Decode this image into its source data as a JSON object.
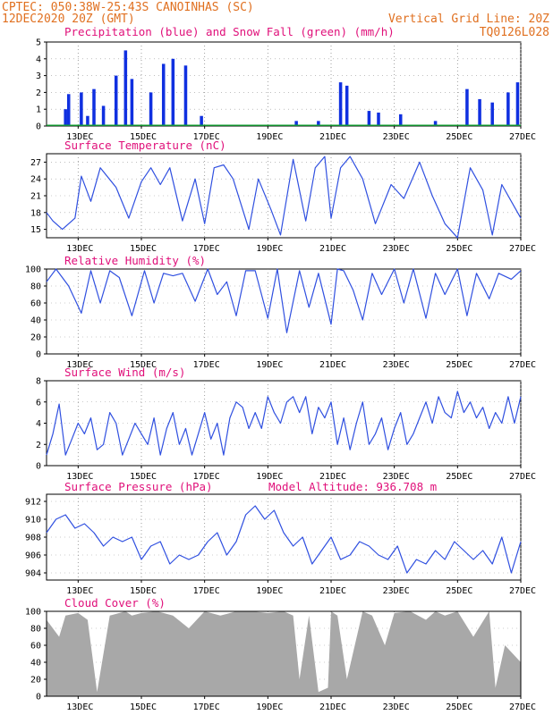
{
  "header": {
    "line1_left": "CPTEC:   050:38W-25:43S   CANOINHAS (SC)",
    "line2_left": "12DEC2020 20Z (GMT)",
    "line2_right": "Vertical Grid Line: 20Z",
    "line3_right": "TQ0126L028"
  },
  "x_tick_labels": [
    "13DEC",
    "15DEC",
    "17DEC",
    "19DEC",
    "21DEC",
    "23DEC",
    "25DEC",
    "27DEC"
  ],
  "colors": {
    "rain": "#1030e0",
    "snow": "#10a030",
    "line": "#3050e0",
    "cloud": "#a8a8a8",
    "title": "#e0107a",
    "header": "#e07020"
  },
  "chart_data": [
    {
      "type": "bar",
      "title": "Precipitation (blue) and Snow Fall (green) (mm/h)",
      "ylim": [
        0,
        5
      ],
      "yticks": [
        "0",
        "1",
        "2",
        "3",
        "4",
        "5"
      ],
      "series": [
        {
          "name": "Precipitation",
          "x": [
            12.6,
            12.7,
            13.1,
            13.3,
            13.5,
            13.8,
            14.2,
            14.5,
            14.7,
            15.3,
            15.7,
            16.0,
            16.4,
            16.9,
            19.9,
            20.6,
            21.3,
            21.5,
            22.2,
            22.5,
            23.2,
            24.3,
            25.3,
            25.7,
            26.1,
            26.6,
            26.9
          ],
          "values": [
            1.0,
            1.9,
            2.0,
            0.6,
            2.2,
            1.2,
            3.0,
            4.5,
            2.8,
            2.0,
            3.7,
            4.0,
            3.6,
            0.6,
            0.3,
            0.3,
            2.6,
            2.4,
            0.9,
            0.8,
            0.7,
            0.3,
            2.2,
            1.6,
            1.4,
            2.0,
            2.6
          ]
        },
        {
          "name": "Snow Fall",
          "values": [
            0
          ]
        }
      ]
    },
    {
      "type": "line",
      "title": "Surface Temperature (nC)",
      "ylim": [
        13.5,
        28.5
      ],
      "yticks": [
        "15",
        "18",
        "21",
        "24",
        "27"
      ],
      "x": [
        12.0,
        12.2,
        12.5,
        12.9,
        13.1,
        13.4,
        13.7,
        14.2,
        14.6,
        15.0,
        15.3,
        15.6,
        15.9,
        16.3,
        16.7,
        17.0,
        17.3,
        17.6,
        17.9,
        18.4,
        18.7,
        19.1,
        19.4,
        19.8,
        20.2,
        20.5,
        20.8,
        21.0,
        21.3,
        21.6,
        22.0,
        22.4,
        22.9,
        23.3,
        23.8,
        24.2,
        24.6,
        25.0,
        25.4,
        25.8,
        26.1,
        26.4,
        26.7,
        27.0
      ],
      "values": [
        18.0,
        16.5,
        15.0,
        17.0,
        24.5,
        20.0,
        26.0,
        22.5,
        17.0,
        23.5,
        26.0,
        23.0,
        26.0,
        16.5,
        24.0,
        16.0,
        26.0,
        26.5,
        24.0,
        15.0,
        24.0,
        18.5,
        14.0,
        27.5,
        16.5,
        26.0,
        28.0,
        17.0,
        26.0,
        28.0,
        24.0,
        16.0,
        23.0,
        20.5,
        27.0,
        21.0,
        16.0,
        13.5,
        26.0,
        22.0,
        14.0,
        23.0,
        20.0,
        17.0
      ]
    },
    {
      "type": "line",
      "title": "Relative Humidity (%)",
      "ylim": [
        0,
        100
      ],
      "yticks": [
        "0",
        "20",
        "40",
        "60",
        "80",
        "100"
      ],
      "x": [
        12.0,
        12.3,
        12.7,
        13.1,
        13.4,
        13.7,
        14.0,
        14.3,
        14.7,
        15.1,
        15.4,
        15.7,
        16.0,
        16.3,
        16.7,
        17.1,
        17.4,
        17.7,
        18.0,
        18.3,
        18.6,
        19.0,
        19.3,
        19.6,
        20.0,
        20.3,
        20.6,
        21.0,
        21.2,
        21.4,
        21.7,
        22.0,
        22.3,
        22.6,
        23.0,
        23.3,
        23.6,
        24.0,
        24.3,
        24.6,
        25.0,
        25.3,
        25.6,
        26.0,
        26.3,
        26.7,
        27.0
      ],
      "values": [
        85,
        100,
        80,
        48,
        98,
        60,
        98,
        90,
        45,
        98,
        60,
        95,
        92,
        95,
        62,
        100,
        70,
        85,
        45,
        98,
        98,
        42,
        100,
        25,
        98,
        55,
        95,
        35,
        100,
        98,
        75,
        40,
        95,
        70,
        100,
        60,
        100,
        42,
        95,
        70,
        100,
        45,
        95,
        65,
        95,
        88,
        98
      ]
    },
    {
      "type": "line",
      "title": "Surface Wind (m/s)",
      "ylim": [
        0,
        8
      ],
      "yticks": [
        "0",
        "2",
        "4",
        "6",
        "8"
      ],
      "x": [
        12.0,
        12.2,
        12.4,
        12.6,
        12.8,
        13.0,
        13.2,
        13.4,
        13.6,
        13.8,
        14.0,
        14.2,
        14.4,
        14.6,
        14.8,
        15.0,
        15.2,
        15.4,
        15.6,
        15.8,
        16.0,
        16.2,
        16.4,
        16.6,
        16.8,
        17.0,
        17.2,
        17.4,
        17.6,
        17.8,
        18.0,
        18.2,
        18.4,
        18.6,
        18.8,
        19.0,
        19.2,
        19.4,
        19.6,
        19.8,
        20.0,
        20.2,
        20.4,
        20.6,
        20.8,
        21.0,
        21.2,
        21.4,
        21.6,
        21.8,
        22.0,
        22.2,
        22.4,
        22.6,
        22.8,
        23.0,
        23.2,
        23.4,
        23.6,
        23.8,
        24.0,
        24.2,
        24.4,
        24.6,
        24.8,
        25.0,
        25.2,
        25.4,
        25.6,
        25.8,
        26.0,
        26.2,
        26.4,
        26.6,
        26.8,
        27.0
      ],
      "values": [
        1.0,
        3.0,
        5.8,
        1.0,
        2.5,
        4.0,
        3.0,
        4.5,
        1.5,
        2.0,
        5.0,
        4.0,
        1.0,
        2.5,
        4.0,
        3.0,
        2.0,
        4.5,
        1.0,
        3.5,
        5.0,
        2.0,
        3.5,
        1.0,
        3.0,
        5.0,
        2.5,
        4.0,
        1.0,
        4.5,
        6.0,
        5.5,
        3.5,
        5.0,
        3.5,
        6.5,
        5.0,
        4.0,
        6.0,
        6.5,
        5.0,
        6.5,
        3.0,
        5.5,
        4.5,
        6.0,
        2.0,
        4.5,
        1.5,
        4.0,
        6.0,
        2.0,
        3.0,
        4.5,
        1.5,
        3.5,
        5.0,
        2.0,
        3.0,
        4.5,
        6.0,
        4.0,
        6.5,
        5.0,
        4.5,
        7.0,
        5.0,
        6.0,
        4.5,
        5.5,
        3.5,
        5.0,
        4.0,
        6.5,
        4.0,
        6.5
      ]
    },
    {
      "type": "line",
      "title": "Surface Pressure (hPa)",
      "annotation": "Model Altitude: 936.708 m",
      "ylim": [
        903.2,
        912.8
      ],
      "yticks": [
        "904",
        "906",
        "908",
        "910",
        "912"
      ],
      "x": [
        12.0,
        12.3,
        12.6,
        12.9,
        13.2,
        13.5,
        13.8,
        14.1,
        14.4,
        14.7,
        15.0,
        15.3,
        15.6,
        15.9,
        16.2,
        16.5,
        16.8,
        17.1,
        17.4,
        17.7,
        18.0,
        18.3,
        18.6,
        18.9,
        19.2,
        19.5,
        19.8,
        20.1,
        20.4,
        20.7,
        21.0,
        21.3,
        21.6,
        21.9,
        22.2,
        22.5,
        22.8,
        23.1,
        23.4,
        23.7,
        24.0,
        24.3,
        24.6,
        24.9,
        25.2,
        25.5,
        25.8,
        26.1,
        26.4,
        26.7,
        27.0
      ],
      "values": [
        908.5,
        910.0,
        910.5,
        909.0,
        909.5,
        908.5,
        907.0,
        908.0,
        907.5,
        908.0,
        905.5,
        907.0,
        907.5,
        905.0,
        906.0,
        905.5,
        906.0,
        907.5,
        908.5,
        906.0,
        907.5,
        910.5,
        911.5,
        910.0,
        911.0,
        908.5,
        907.0,
        908.0,
        905.0,
        906.5,
        908.0,
        905.5,
        906.0,
        907.5,
        907.0,
        906.0,
        905.5,
        907.0,
        904.0,
        905.5,
        905.0,
        906.5,
        905.5,
        907.5,
        906.5,
        905.5,
        906.5,
        905.0,
        908.0,
        904.0,
        907.5
      ]
    },
    {
      "type": "area",
      "title": "Cloud Cover (%)",
      "ylim": [
        0,
        100
      ],
      "yticks": [
        "0",
        "20",
        "40",
        "60",
        "80",
        "100"
      ],
      "x": [
        12.0,
        12.4,
        12.6,
        13.0,
        13.3,
        13.6,
        14.0,
        14.5,
        14.7,
        15.0,
        15.5,
        16.0,
        16.5,
        17.0,
        17.5,
        18.0,
        18.5,
        19.0,
        19.5,
        19.8,
        20.0,
        20.3,
        20.6,
        20.9,
        21.0,
        21.2,
        21.5,
        22.0,
        22.3,
        22.7,
        23.0,
        23.5,
        24.0,
        24.3,
        24.6,
        25.0,
        25.5,
        26.0,
        26.2,
        26.5,
        27.0
      ],
      "values": [
        90,
        70,
        95,
        98,
        90,
        5,
        95,
        100,
        95,
        98,
        100,
        95,
        80,
        100,
        95,
        100,
        100,
        98,
        100,
        95,
        20,
        95,
        5,
        10,
        100,
        95,
        20,
        100,
        95,
        60,
        98,
        100,
        90,
        100,
        95,
        100,
        70,
        100,
        10,
        60,
        40
      ]
    }
  ]
}
